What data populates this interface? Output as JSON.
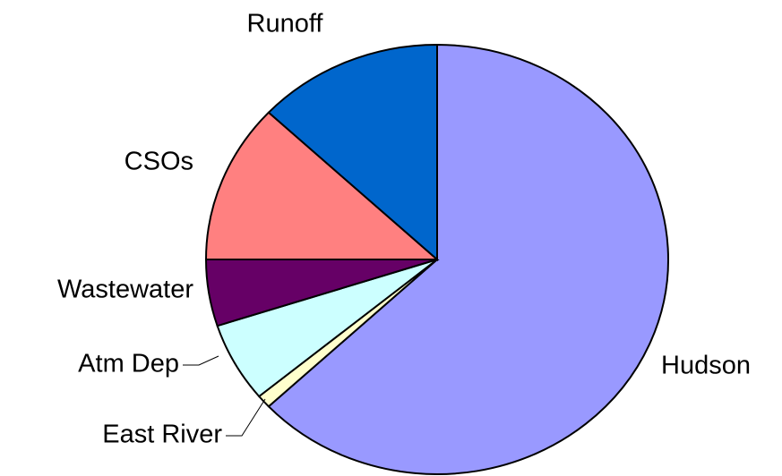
{
  "chart_data": {
    "type": "pie",
    "categories": [
      "Hudson",
      "East River",
      "Atm Dep",
      "Wastewater",
      "CSOs",
      "Runoff"
    ],
    "values": [
      63,
      1,
      6,
      5,
      12,
      13
    ],
    "colors": [
      "#9999ff",
      "#ffffcc",
      "#ccffff",
      "#660066",
      "#ff8080",
      "#0066cc"
    ]
  }
}
